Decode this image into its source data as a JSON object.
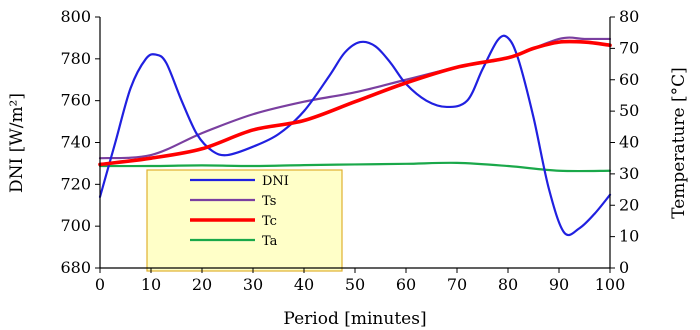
{
  "chart_data": {
    "type": "line",
    "x": [
      0,
      10,
      20,
      30,
      40,
      50,
      60,
      70,
      80,
      90,
      100
    ],
    "xlabel": "Period [minutes]",
    "ylabel_left": "DNI [W/m²]",
    "ylabel_right": "Temperature [°C]",
    "xlim": [
      0,
      100
    ],
    "ylim_left": [
      680,
      800
    ],
    "ylim_right": [
      0,
      80
    ],
    "xticks": [
      0,
      10,
      20,
      30,
      40,
      50,
      60,
      70,
      80,
      90,
      100
    ],
    "yticks_left": [
      680,
      700,
      720,
      740,
      760,
      780,
      800
    ],
    "yticks_right": [
      0,
      10,
      20,
      30,
      40,
      50,
      60,
      70,
      80
    ],
    "grid": false,
    "legend_position": "bottom-left",
    "series": [
      {
        "name": "DNI",
        "axis": "left",
        "color": "#2020e0",
        "x": [
          0,
          3,
          6,
          9,
          11,
          13,
          16,
          19,
          22,
          25,
          30,
          35,
          40,
          45,
          48,
          51,
          54,
          57,
          60,
          64,
          68,
          72,
          75,
          78,
          80,
          82,
          85,
          88,
          91,
          94,
          97,
          100
        ],
        "values": [
          714,
          740,
          766,
          780,
          782,
          778,
          760,
          744,
          736,
          734,
          738,
          744,
          755,
          772,
          783,
          788,
          786,
          778,
          768,
          760,
          757,
          760,
          775,
          789,
          790,
          780,
          752,
          718,
          697,
          699,
          706,
          715
        ]
      },
      {
        "name": "Ts",
        "axis": "right",
        "color": "#7a3fa0",
        "x": [
          0,
          10,
          20,
          30,
          40,
          50,
          60,
          70,
          80,
          90,
          95,
          100
        ],
        "values": [
          35,
          36,
          43,
          49,
          53,
          56,
          60,
          64,
          67,
          73,
          73,
          73
        ]
      },
      {
        "name": "Tc",
        "axis": "right",
        "color": "#ff0000",
        "x": [
          0,
          10,
          20,
          30,
          40,
          50,
          60,
          70,
          80,
          85,
          90,
          95,
          100
        ],
        "values": [
          33,
          35,
          38,
          44,
          47,
          53,
          59,
          64,
          67,
          70,
          72,
          72,
          71
        ]
      },
      {
        "name": "Ta",
        "axis": "right",
        "color": "#1aa84a",
        "x": [
          0,
          10,
          20,
          30,
          40,
          50,
          60,
          70,
          80,
          90,
          100
        ],
        "values": [
          32.5,
          32.5,
          32.7,
          32.5,
          32.8,
          33,
          33.2,
          33.5,
          32.5,
          31,
          31
        ]
      }
    ]
  }
}
